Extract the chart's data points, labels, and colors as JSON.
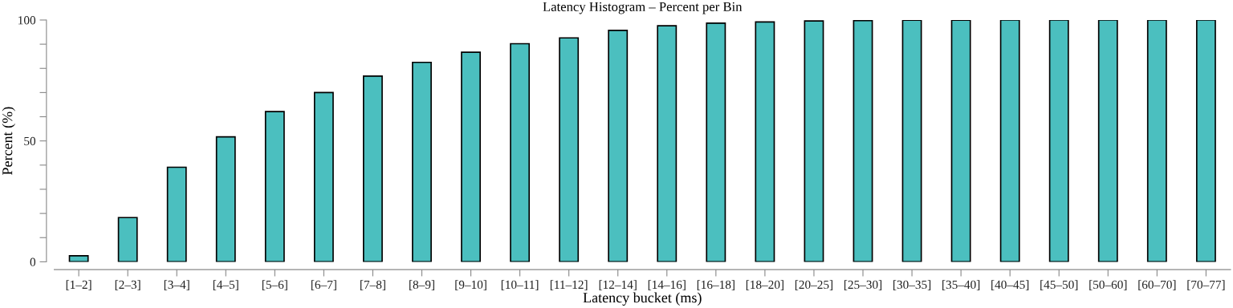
{
  "chart_data": {
    "type": "bar",
    "title": "Latency Histogram – Percent per Bin",
    "xlabel": "Latency bucket (ms)",
    "ylabel": "Percent (%)",
    "categories": [
      "[1–2]",
      "[2–3]",
      "[3–4]",
      "[4–5]",
      "[5–6]",
      "[6–7]",
      "[7–8]",
      "[8–9]",
      "[9–10]",
      "[10–11]",
      "[11–12]",
      "[12–14]",
      "[14–16]",
      "[16–18]",
      "[18–20]",
      "[20–25]",
      "[25–30]",
      "[30–35]",
      "[35–40]",
      "[40–45]",
      "[45–50]",
      "[50–60]",
      "[60–70]",
      "[70–77]"
    ],
    "values": [
      2.5,
      18.3,
      39.1,
      51.7,
      62.1,
      70.0,
      76.8,
      82.5,
      86.7,
      90.2,
      92.6,
      95.7,
      97.6,
      98.7,
      99.2,
      99.6,
      99.8,
      99.9,
      99.9,
      100,
      100,
      100,
      100,
      100
    ],
    "color": "#4bbfbf",
    "ylim": [
      0,
      100
    ],
    "yticks": [
      0,
      {
        "value": 10,
        "label": null
      },
      {
        "value": 20,
        "label": null
      },
      {
        "value": 30,
        "label": null
      },
      {
        "value": 40,
        "label": null
      },
      50,
      {
        "value": 60,
        "label": null
      },
      {
        "value": 70,
        "label": null
      },
      {
        "value": 80,
        "label": null
      },
      {
        "value": 90,
        "label": null
      },
      100
    ],
    "grid": false,
    "legend": false
  }
}
